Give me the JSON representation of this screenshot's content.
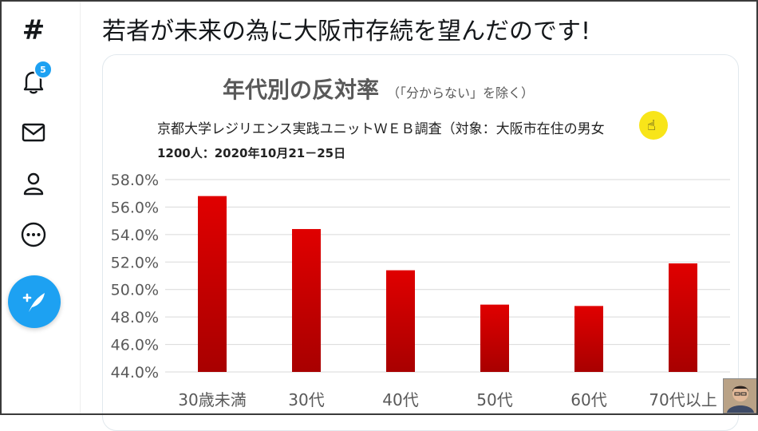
{
  "sidebar": {
    "explore_glyph": "#",
    "notification_count": "5"
  },
  "post": {
    "text": "若者が未来の為に大阪市存続を望んだのです!"
  },
  "chart_data": {
    "type": "bar",
    "title": "年代別の反対率",
    "subtitle": "（「分からない」を除く）",
    "source_line1": "京都大学レジリエンス実践ユニットＷＥＢ調査（対象：大阪市在住の男女",
    "source_line2": "1200人：2020年10月21－25日",
    "categories": [
      "30歳未満",
      "30代",
      "40代",
      "50代",
      "60代",
      "70代以上"
    ],
    "values": [
      56.8,
      54.4,
      51.4,
      48.9,
      48.8,
      51.9
    ],
    "ylim": [
      44,
      58
    ],
    "yticks": [
      "44.0%",
      "46.0%",
      "48.0%",
      "50.0%",
      "52.0%",
      "54.0%",
      "56.0%",
      "58.0%"
    ],
    "grid": true,
    "bar_color": "#e00000"
  }
}
